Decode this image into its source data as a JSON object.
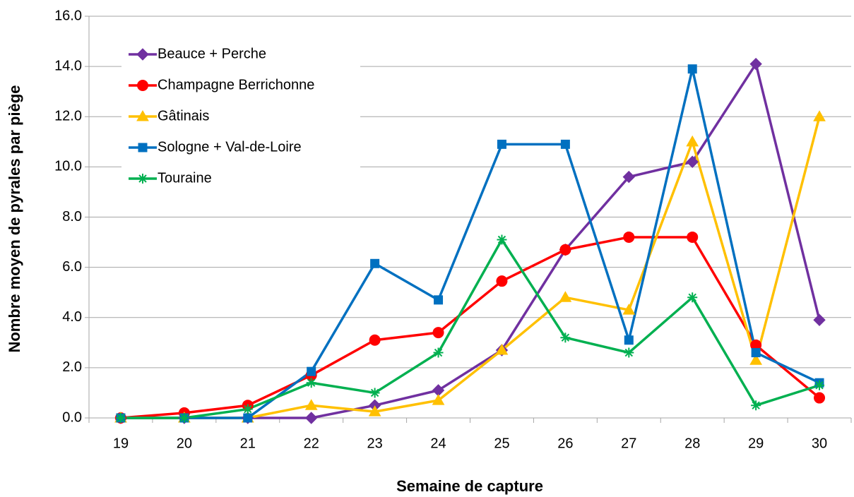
{
  "chart_data": {
    "type": "line",
    "x_label": "Semaine de capture",
    "y_label": "Nombre moyen de pyrales par piège",
    "categories": [
      "19",
      "20",
      "21",
      "22",
      "23",
      "24",
      "25",
      "26",
      "27",
      "28",
      "29",
      "30"
    ],
    "series": [
      {
        "name": "Beauce + Perche",
        "color": "#7030a0",
        "marker": "diamond",
        "values": [
          0,
          0,
          0,
          0,
          0.5,
          1.1,
          2.7,
          6.7,
          9.6,
          10.2,
          14.1,
          3.9
        ]
      },
      {
        "name": "Champagne Berrichonne",
        "color": "#ff0000",
        "marker": "circle",
        "values": [
          0,
          0.2,
          0.5,
          1.7,
          3.1,
          3.4,
          5.45,
          6.7,
          7.2,
          7.2,
          2.9,
          0.8
        ]
      },
      {
        "name": "Gâtinais",
        "color": "#ffc000",
        "marker": "triangle",
        "values": [
          0,
          0,
          0,
          0.5,
          0.25,
          0.7,
          2.7,
          4.8,
          4.3,
          11.0,
          2.3,
          12.0
        ]
      },
      {
        "name": "Sologne + Val-de-Loire",
        "color": "#0070c0",
        "marker": "square",
        "values": [
          0,
          0,
          0,
          1.85,
          6.15,
          4.7,
          10.9,
          10.9,
          3.1,
          13.9,
          2.6,
          1.4
        ]
      },
      {
        "name": "Touraine",
        "color": "#00b050",
        "marker": "star",
        "values": [
          0,
          0,
          0.35,
          1.4,
          1.0,
          2.6,
          7.1,
          3.2,
          2.6,
          4.8,
          0.5,
          1.3
        ]
      }
    ],
    "ylim": [
      0,
      16
    ],
    "yticks": [
      {
        "value": 0,
        "label": "0.0"
      },
      {
        "value": 2,
        "label": "2.0"
      },
      {
        "value": 4,
        "label": "4.0"
      },
      {
        "value": 6,
        "label": "6.0"
      },
      {
        "value": 8,
        "label": "8.0"
      },
      {
        "value": 10,
        "label": "10.0"
      },
      {
        "value": 12,
        "label": "12.0"
      },
      {
        "value": 14,
        "label": "14.0"
      },
      {
        "value": 16,
        "label": "16.0"
      }
    ],
    "grid": true,
    "legend": "top-left"
  }
}
